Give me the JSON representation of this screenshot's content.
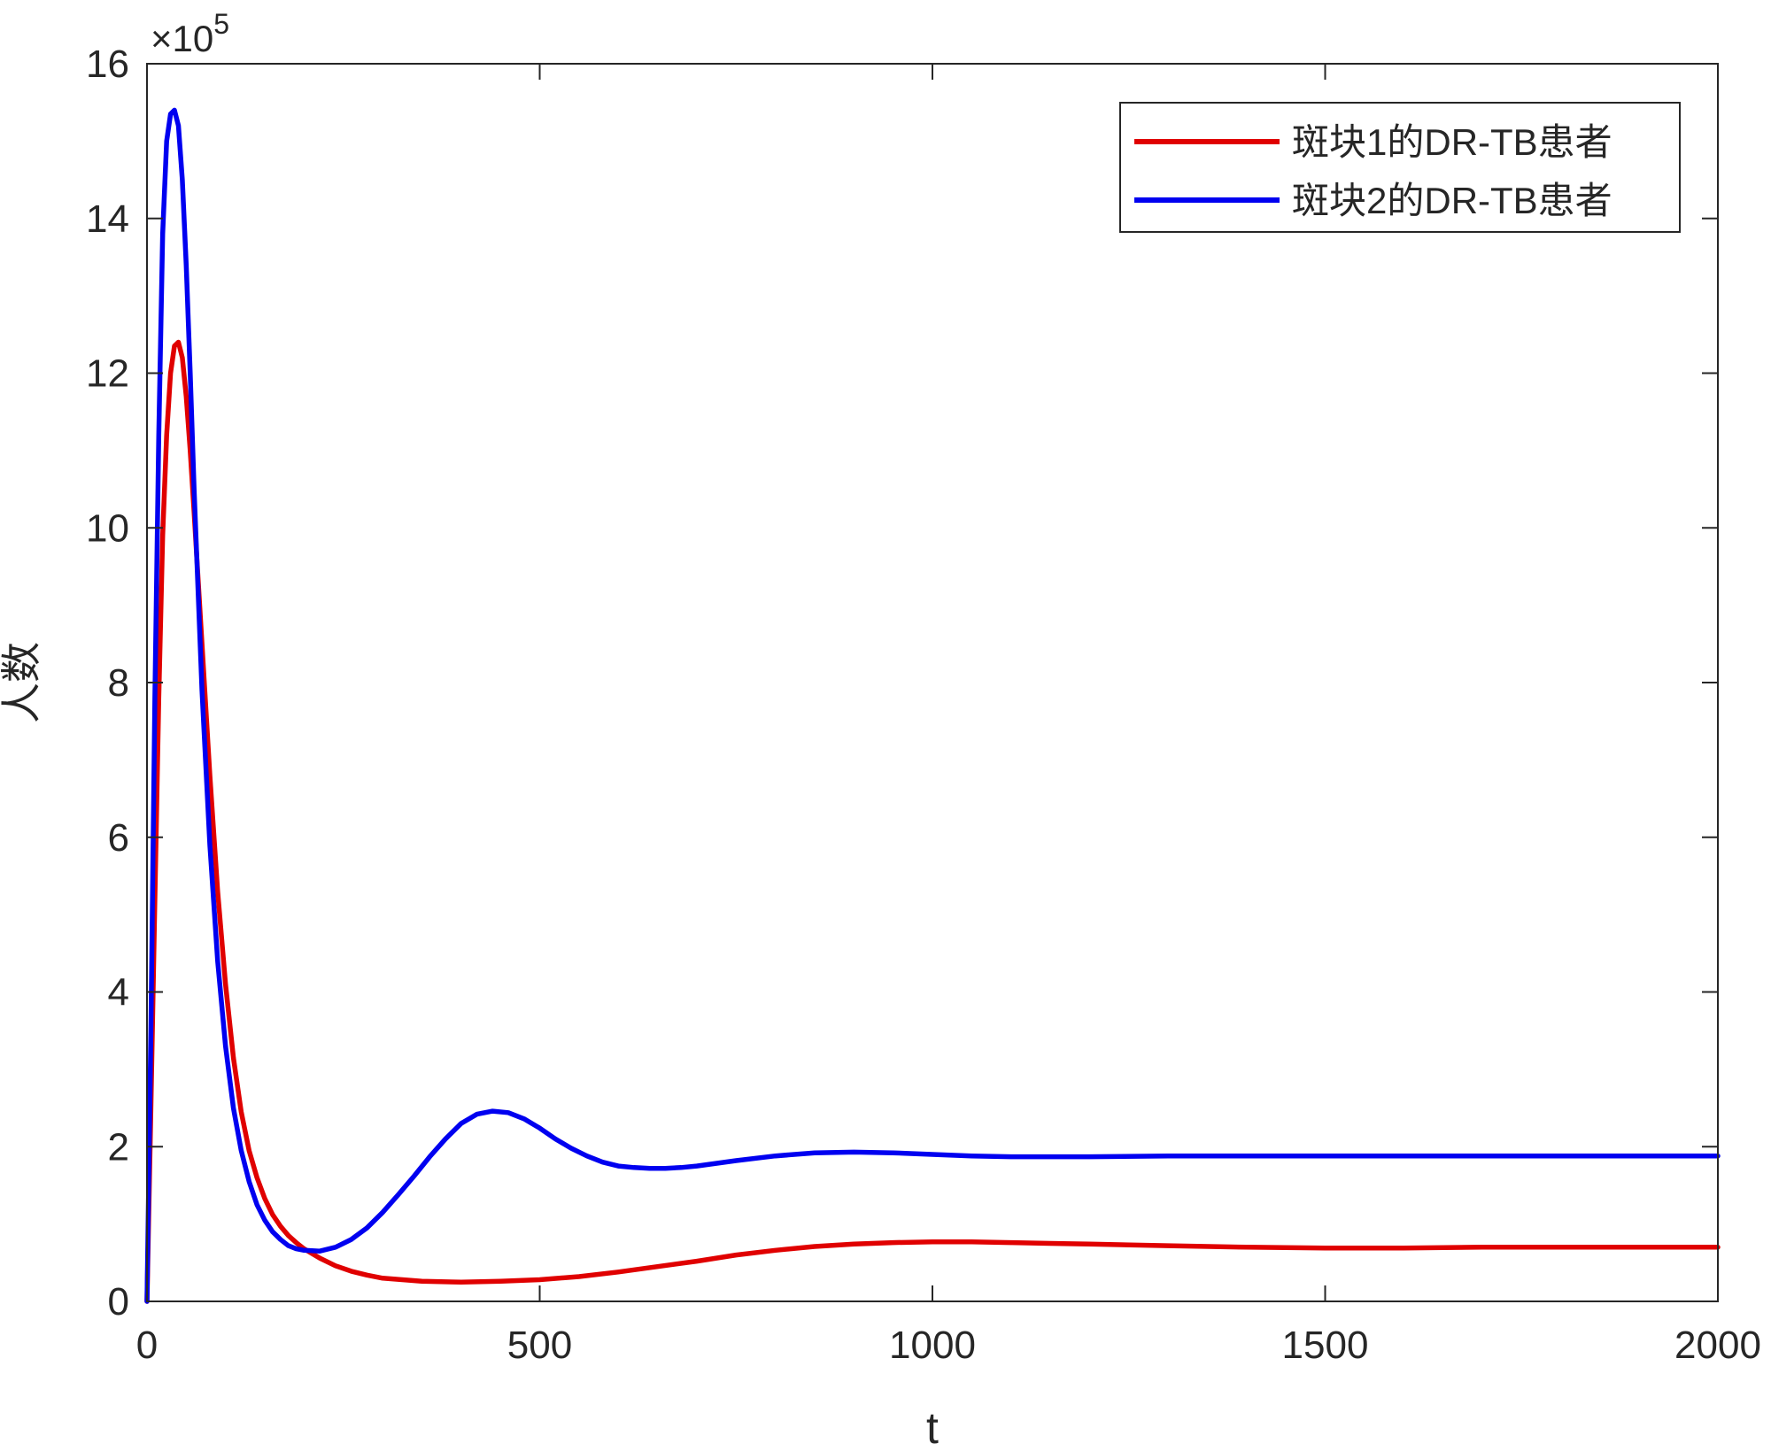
{
  "chart_data": {
    "type": "line",
    "xlabel": "t",
    "ylabel": "人数",
    "exponent_label": {
      "times": "×10",
      "power": "5"
    },
    "xlim": [
      0,
      2000
    ],
    "ylim": [
      0,
      16
    ],
    "y_scale_factor": 100000,
    "xticks": [
      0,
      500,
      1000,
      1500,
      2000
    ],
    "yticks": [
      0,
      2,
      4,
      6,
      8,
      10,
      12,
      14,
      16
    ],
    "xtick_labels": [
      "0",
      "500",
      "1000",
      "1500",
      "2000"
    ],
    "ytick_labels": [
      "0",
      "2",
      "4",
      "6",
      "8",
      "10",
      "12",
      "14",
      "16"
    ],
    "grid": false,
    "legend_position": "top-right",
    "series": [
      {
        "name": "斑块1的DR-TB患者",
        "color": "#e00000",
        "x": [
          0,
          5,
          10,
          15,
          20,
          25,
          30,
          35,
          40,
          45,
          50,
          55,
          60,
          70,
          80,
          90,
          100,
          110,
          120,
          130,
          140,
          150,
          160,
          170,
          180,
          190,
          200,
          220,
          240,
          260,
          280,
          300,
          350,
          400,
          450,
          500,
          550,
          600,
          650,
          700,
          750,
          800,
          850,
          900,
          950,
          1000,
          1050,
          1100,
          1150,
          1200,
          1300,
          1400,
          1500,
          1600,
          1700,
          1800,
          1900,
          2000
        ],
        "y": [
          0.0,
          2.5,
          5.2,
          7.8,
          9.9,
          11.2,
          12.0,
          12.35,
          12.4,
          12.2,
          11.7,
          11.0,
          10.2,
          8.5,
          6.8,
          5.3,
          4.1,
          3.15,
          2.45,
          1.95,
          1.6,
          1.33,
          1.12,
          0.97,
          0.85,
          0.76,
          0.68,
          0.56,
          0.46,
          0.39,
          0.34,
          0.3,
          0.26,
          0.25,
          0.26,
          0.28,
          0.32,
          0.38,
          0.45,
          0.52,
          0.6,
          0.66,
          0.71,
          0.74,
          0.76,
          0.77,
          0.77,
          0.76,
          0.75,
          0.74,
          0.72,
          0.7,
          0.69,
          0.69,
          0.7,
          0.7,
          0.7,
          0.7
        ]
      },
      {
        "name": "斑块2的DR-TB患者",
        "color": "#0000f0",
        "x": [
          0,
          5,
          10,
          15,
          20,
          25,
          30,
          35,
          40,
          45,
          50,
          55,
          60,
          70,
          80,
          90,
          100,
          110,
          120,
          130,
          140,
          150,
          160,
          170,
          180,
          190,
          200,
          220,
          240,
          260,
          280,
          300,
          320,
          340,
          360,
          380,
          400,
          420,
          440,
          460,
          480,
          500,
          520,
          540,
          560,
          580,
          600,
          620,
          640,
          660,
          680,
          700,
          750,
          800,
          850,
          900,
          950,
          1000,
          1050,
          1100,
          1200,
          1300,
          1400,
          1500,
          1600,
          1700,
          1800,
          1900,
          2000
        ],
        "y": [
          0.0,
          3.5,
          7.8,
          11.2,
          13.8,
          15.0,
          15.35,
          15.4,
          15.2,
          14.5,
          13.4,
          12.0,
          10.5,
          7.9,
          5.9,
          4.4,
          3.3,
          2.5,
          1.95,
          1.55,
          1.25,
          1.05,
          0.9,
          0.8,
          0.72,
          0.68,
          0.66,
          0.65,
          0.7,
          0.8,
          0.95,
          1.15,
          1.38,
          1.62,
          1.87,
          2.1,
          2.3,
          2.42,
          2.46,
          2.44,
          2.36,
          2.24,
          2.1,
          1.98,
          1.88,
          1.8,
          1.75,
          1.73,
          1.72,
          1.72,
          1.73,
          1.75,
          1.82,
          1.88,
          1.92,
          1.93,
          1.92,
          1.9,
          1.88,
          1.87,
          1.87,
          1.88,
          1.88,
          1.88,
          1.88,
          1.88,
          1.88,
          1.88,
          1.88
        ]
      }
    ]
  }
}
